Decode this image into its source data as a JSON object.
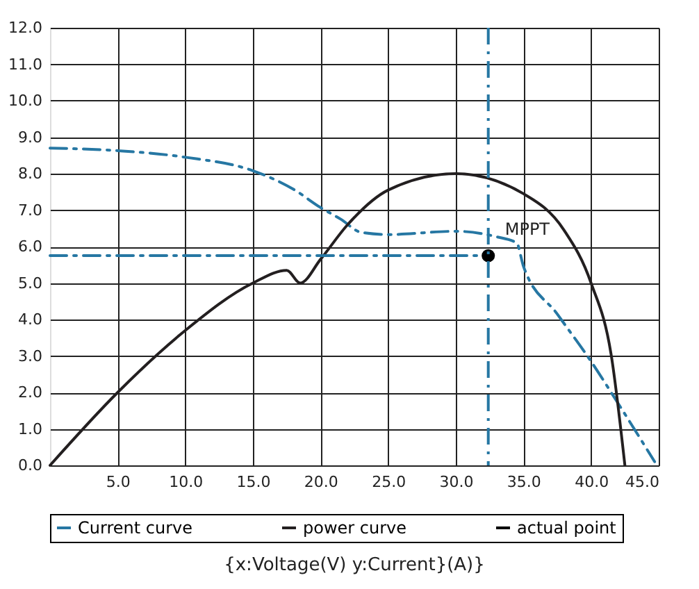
{
  "chart_data": {
    "type": "line",
    "xlim": [
      0,
      45
    ],
    "ylim": [
      0,
      12
    ],
    "xticks": [
      {
        "value": 5,
        "label": "5.0"
      },
      {
        "value": 10,
        "label": "10.0"
      },
      {
        "value": 15,
        "label": "15.0"
      },
      {
        "value": 20,
        "label": "20.0"
      },
      {
        "value": 25,
        "label": "25.0"
      },
      {
        "value": 30,
        "label": "30.0"
      },
      {
        "value": 35,
        "label": "35.0"
      },
      {
        "value": 40,
        "label": "40.0"
      },
      {
        "value": 45,
        "label": "45.0"
      }
    ],
    "yticks": [
      {
        "value": 0,
        "label": "0.0"
      },
      {
        "value": 1,
        "label": "1.0"
      },
      {
        "value": 2,
        "label": "2.0"
      },
      {
        "value": 3,
        "label": "3.0"
      },
      {
        "value": 4,
        "label": "4.0"
      },
      {
        "value": 5,
        "label": "5.0"
      },
      {
        "value": 6,
        "label": "6.0"
      },
      {
        "value": 7,
        "label": "7.0"
      },
      {
        "value": 8,
        "label": "8.0"
      },
      {
        "value": 9,
        "label": "9.0"
      },
      {
        "value": 10,
        "label": "10.0"
      },
      {
        "value": 11,
        "label": "11.0"
      },
      {
        "value": 12,
        "label": "12.0"
      }
    ],
    "grid": true,
    "legend": "bottom",
    "series": [
      {
        "name": "Current curve",
        "line_style": "dashed",
        "color": "#2677a3",
        "x": [
          0,
          5,
          10,
          15,
          18,
          20,
          21.5,
          23,
          25,
          30,
          33,
          34.5,
          35,
          37.5,
          40,
          42,
          44.7
        ],
        "values": [
          8.7,
          8.63,
          8.45,
          8.08,
          7.57,
          7.07,
          6.75,
          6.39,
          6.33,
          6.42,
          6.27,
          6.1,
          5.46,
          4.15,
          2.85,
          1.7,
          0.1
        ]
      },
      {
        "name": "power curve",
        "line_style": "solid",
        "color": "#231f20",
        "x": [
          0,
          5,
          10,
          15,
          17.5,
          18.5,
          20,
          22,
          25,
          30,
          35,
          38,
          40,
          41.5,
          42.5
        ],
        "values": [
          0,
          2.0,
          3.7,
          5.0,
          5.35,
          5.0,
          5.65,
          6.6,
          7.55,
          8.0,
          7.45,
          6.45,
          5.0,
          3.0,
          0
        ]
      },
      {
        "line_style": "dashed",
        "color": "#2677a3",
        "x": [
          0,
          32.4
        ],
        "values": [
          5.75,
          5.75
        ]
      },
      {
        "name": "actual point",
        "type": "scatter",
        "marker": "circle",
        "color": "#000000",
        "x": [
          32.4
        ],
        "values": [
          5.75
        ]
      }
    ],
    "ref_lines": [
      {
        "axis": "x",
        "value": 32.4,
        "color": "#2677a3",
        "line_style": "dashed"
      }
    ],
    "annotations": [
      {
        "text": "MPPT",
        "x": 32.4,
        "y": 5.75
      },
      "{x:Voltage(V)    y:Current}(A)}"
    ]
  }
}
